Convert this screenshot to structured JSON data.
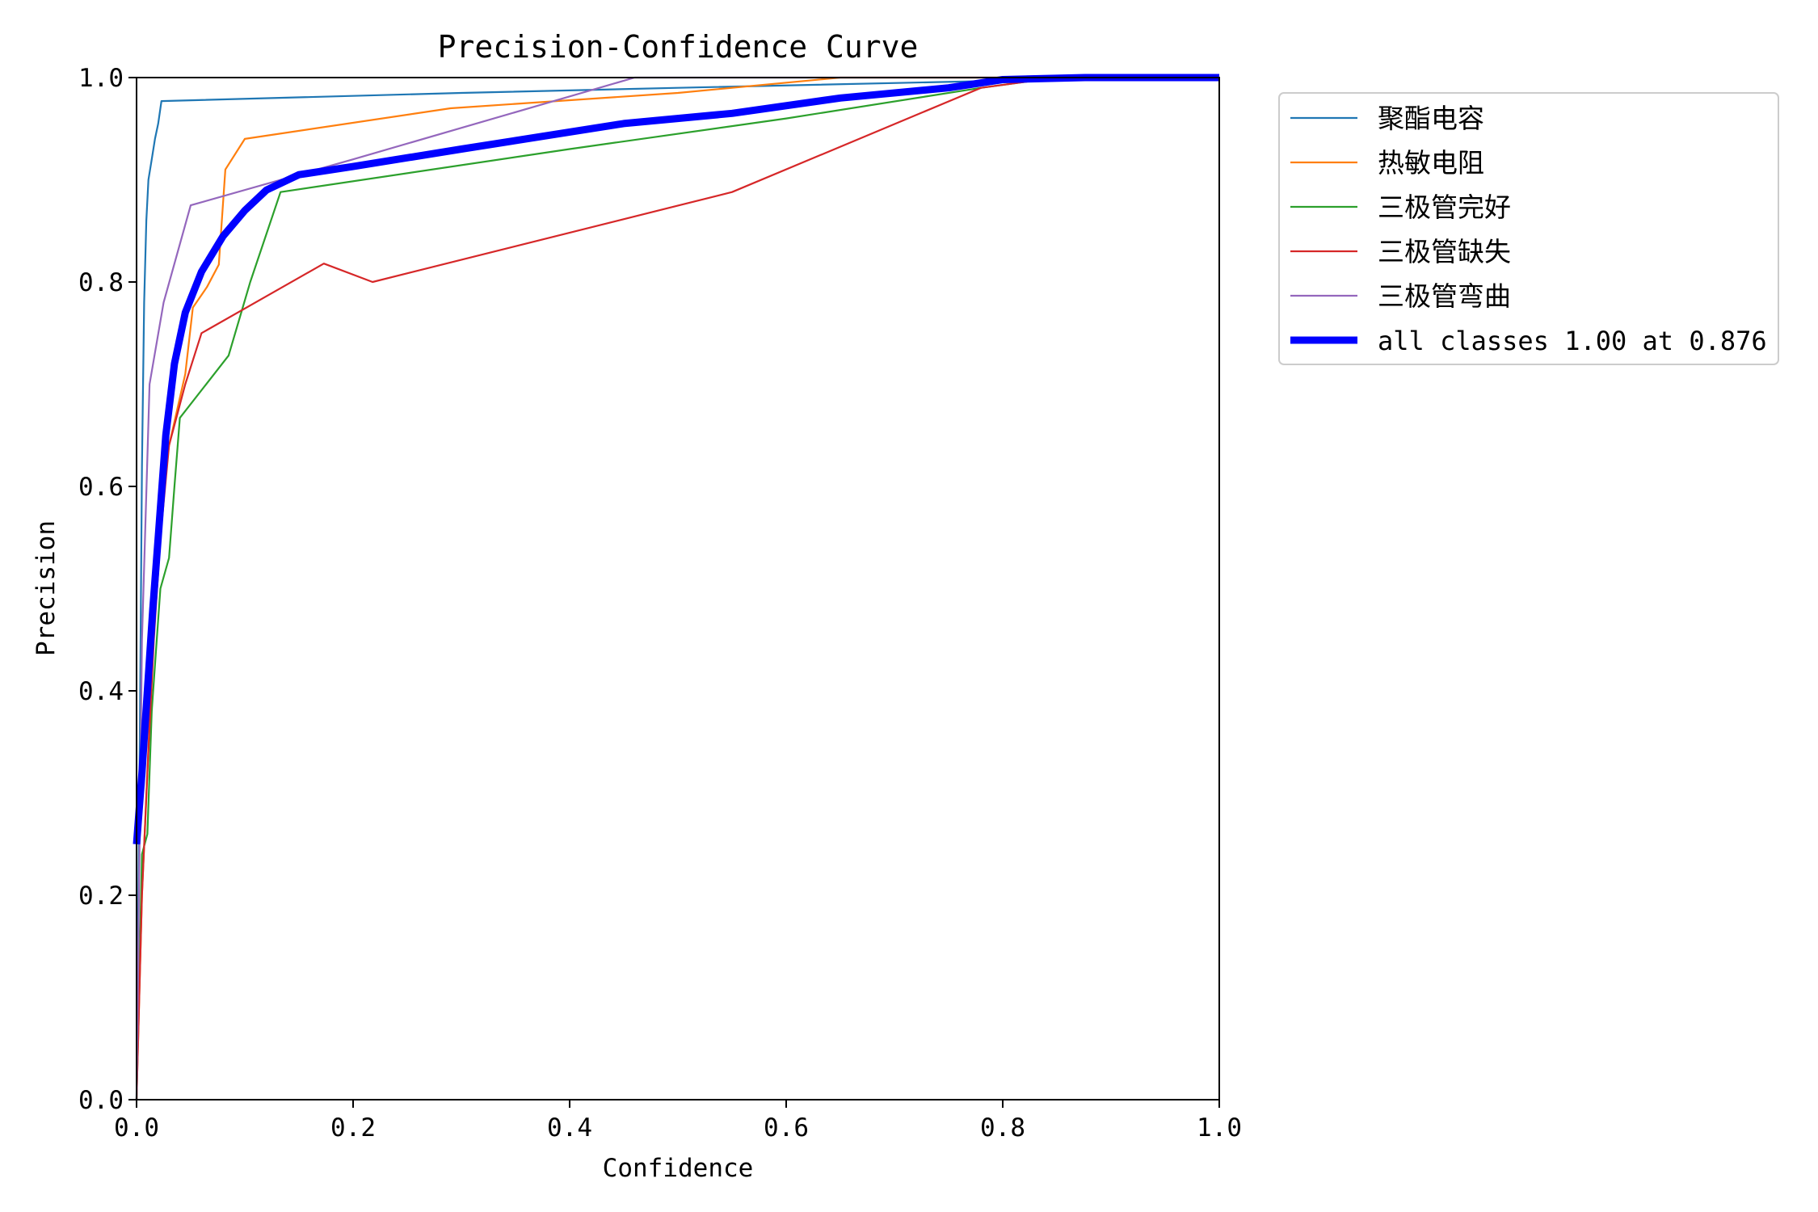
{
  "chart_data": {
    "type": "line",
    "title": "Precision-Confidence Curve",
    "xlabel": "Confidence",
    "ylabel": "Precision",
    "xlim": [
      0,
      1
    ],
    "ylim": [
      0,
      1
    ],
    "x_ticks": [
      "0.0",
      "0.2",
      "0.4",
      "0.6",
      "0.8",
      "1.0"
    ],
    "y_ticks": [
      "0.0",
      "0.2",
      "0.4",
      "0.6",
      "0.8",
      "1.0"
    ],
    "grid": false,
    "legend_position": "outside-top-right",
    "series": [
      {
        "name": "聚酯电容",
        "color": "#1f77b4",
        "width": "thin",
        "points": [
          [
            0.0,
            0.0
          ],
          [
            0.003,
            0.35
          ],
          [
            0.005,
            0.62
          ],
          [
            0.007,
            0.78
          ],
          [
            0.009,
            0.86
          ],
          [
            0.011,
            0.9
          ],
          [
            0.014,
            0.92
          ],
          [
            0.017,
            0.94
          ],
          [
            0.02,
            0.955
          ],
          [
            0.023,
            0.977
          ],
          [
            0.3,
            0.985
          ],
          [
            0.5,
            0.99
          ],
          [
            0.8,
            0.997
          ],
          [
            1.0,
            0.998
          ]
        ]
      },
      {
        "name": "热敏电阻",
        "color": "#ff7f0e",
        "width": "thin",
        "points": [
          [
            0.0,
            0.0
          ],
          [
            0.005,
            0.2
          ],
          [
            0.01,
            0.32
          ],
          [
            0.015,
            0.45
          ],
          [
            0.02,
            0.56
          ],
          [
            0.03,
            0.64
          ],
          [
            0.045,
            0.71
          ],
          [
            0.052,
            0.775
          ],
          [
            0.065,
            0.795
          ],
          [
            0.076,
            0.817
          ],
          [
            0.082,
            0.91
          ],
          [
            0.1,
            0.94
          ],
          [
            0.29,
            0.97
          ],
          [
            0.5,
            0.985
          ],
          [
            0.65,
            1.0
          ],
          [
            1.0,
            1.0
          ]
        ]
      },
      {
        "name": "三极管完好",
        "color": "#2ca02c",
        "width": "thin",
        "points": [
          [
            0.0,
            0.0
          ],
          [
            0.005,
            0.24
          ],
          [
            0.01,
            0.26
          ],
          [
            0.014,
            0.38
          ],
          [
            0.018,
            0.44
          ],
          [
            0.022,
            0.5
          ],
          [
            0.03,
            0.53
          ],
          [
            0.035,
            0.6
          ],
          [
            0.04,
            0.667
          ],
          [
            0.085,
            0.728
          ],
          [
            0.105,
            0.8
          ],
          [
            0.133,
            0.888
          ],
          [
            0.4,
            0.93
          ],
          [
            0.6,
            0.96
          ],
          [
            0.78,
            0.99
          ],
          [
            0.85,
            1.0
          ],
          [
            1.0,
            1.0
          ]
        ]
      },
      {
        "name": "三极管缺失",
        "color": "#d62728",
        "width": "thin",
        "points": [
          [
            0.0,
            0.0
          ],
          [
            0.005,
            0.2
          ],
          [
            0.01,
            0.32
          ],
          [
            0.016,
            0.45
          ],
          [
            0.022,
            0.55
          ],
          [
            0.03,
            0.64
          ],
          [
            0.045,
            0.7
          ],
          [
            0.06,
            0.75
          ],
          [
            0.173,
            0.818
          ],
          [
            0.218,
            0.8
          ],
          [
            0.55,
            0.888
          ],
          [
            0.78,
            0.99
          ],
          [
            0.85,
            1.0
          ],
          [
            1.0,
            1.0
          ]
        ]
      },
      {
        "name": "三极管弯曲",
        "color": "#9467bd",
        "width": "thin",
        "points": [
          [
            0.0,
            0.0
          ],
          [
            0.005,
            0.45
          ],
          [
            0.012,
            0.7
          ],
          [
            0.025,
            0.78
          ],
          [
            0.05,
            0.875
          ],
          [
            0.2,
            0.92
          ],
          [
            0.46,
            1.0
          ],
          [
            1.0,
            1.0
          ]
        ]
      },
      {
        "name": "all classes 1.00 at 0.876",
        "color": "#0000ff",
        "width": "thick",
        "points": [
          [
            0.0,
            0.25
          ],
          [
            0.005,
            0.32
          ],
          [
            0.01,
            0.4
          ],
          [
            0.015,
            0.48
          ],
          [
            0.02,
            0.55
          ],
          [
            0.027,
            0.65
          ],
          [
            0.035,
            0.72
          ],
          [
            0.045,
            0.77
          ],
          [
            0.06,
            0.81
          ],
          [
            0.08,
            0.845
          ],
          [
            0.1,
            0.87
          ],
          [
            0.12,
            0.89
          ],
          [
            0.15,
            0.905
          ],
          [
            0.2,
            0.913
          ],
          [
            0.3,
            0.93
          ],
          [
            0.45,
            0.955
          ],
          [
            0.55,
            0.965
          ],
          [
            0.65,
            0.98
          ],
          [
            0.75,
            0.99
          ],
          [
            0.8,
            0.998
          ],
          [
            0.876,
            1.0
          ],
          [
            1.0,
            1.0
          ]
        ]
      }
    ]
  }
}
